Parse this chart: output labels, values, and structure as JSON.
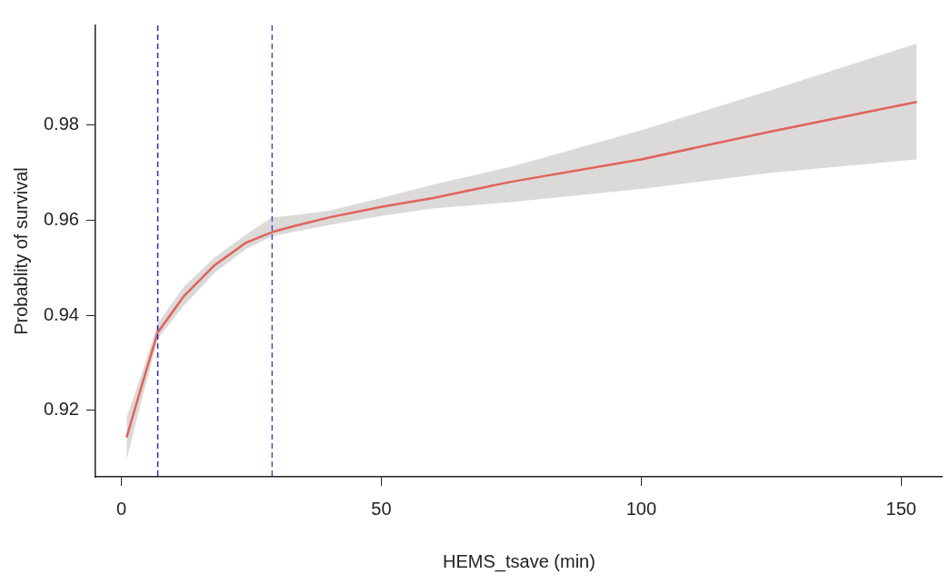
{
  "chart_data": {
    "type": "line",
    "xlabel": "HEMS_tsave (min)",
    "ylabel": "Probablity of survival",
    "x": [
      1,
      4,
      7,
      12,
      18,
      24,
      29,
      33,
      40,
      50,
      60,
      75,
      100,
      125,
      153
    ],
    "series": [
      {
        "color": "#e0635a",
        "values": [
          0.9143,
          0.9255,
          0.9364,
          0.944,
          0.9506,
          0.9553,
          0.9575,
          0.9587,
          0.9606,
          0.9628,
          0.9647,
          0.9681,
          0.9728,
          0.9787,
          0.9849
        ],
        "lower": [
          0.9096,
          0.9225,
          0.9351,
          0.942,
          0.949,
          0.954,
          0.9566,
          0.9575,
          0.959,
          0.9609,
          0.9625,
          0.9638,
          0.9666,
          0.97,
          0.9728
        ],
        "upper": [
          0.9185,
          0.928,
          0.9383,
          0.946,
          0.9522,
          0.957,
          0.9606,
          0.961,
          0.962,
          0.9647,
          0.9675,
          0.9713,
          0.9789,
          0.9874,
          0.9972
        ]
      }
    ],
    "xlim": [
      -5,
      158
    ],
    "xticks": [
      0,
      50,
      100,
      150
    ],
    "ylim": [
      0.906,
      1.001
    ],
    "yticks": [
      0.92,
      0.94,
      0.96,
      0.98
    ],
    "ref_lines": [
      {
        "axis": "x",
        "value": 7,
        "color": "#2a2aa8",
        "line_style": "dashed"
      },
      {
        "axis": "x",
        "value": 29,
        "color": "#4a4ad0",
        "line_style": "dashed"
      }
    ],
    "grid": false,
    "legend": false,
    "marker": "none",
    "line_style": "solid"
  }
}
